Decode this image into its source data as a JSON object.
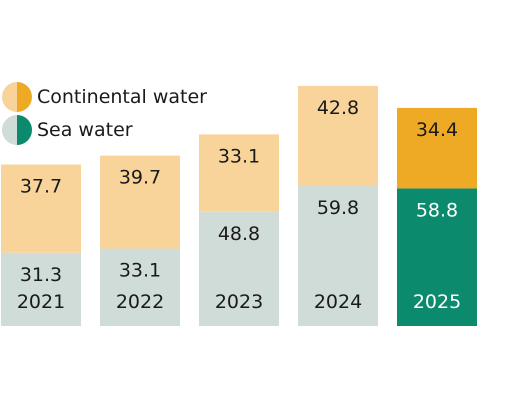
{
  "chart_data": {
    "type": "bar",
    "stacked": true,
    "categories": [
      "2021",
      "2022",
      "2023",
      "2024",
      "2025"
    ],
    "series": [
      {
        "name": "Sea water",
        "values": [
          31.3,
          33.1,
          48.8,
          59.8,
          58.8
        ]
      },
      {
        "name": "Continental water",
        "values": [
          37.7,
          39.7,
          33.1,
          42.8,
          34.4
        ]
      }
    ],
    "highlight_category": "2025",
    "colors": {
      "sea_water": "#cfdcd8",
      "continental_water": "#f8d49a",
      "sea_water_highlight": "#0b8a6e",
      "continental_water_highlight": "#eeaa24",
      "label_dark": "#1a1a1a",
      "label_light": "#ffffff"
    },
    "legend": {
      "position": "top-left",
      "items": [
        {
          "label": "Continental water",
          "series": "Continental water"
        },
        {
          "label": "Sea water",
          "series": "Sea water"
        }
      ]
    },
    "grid": false
  }
}
